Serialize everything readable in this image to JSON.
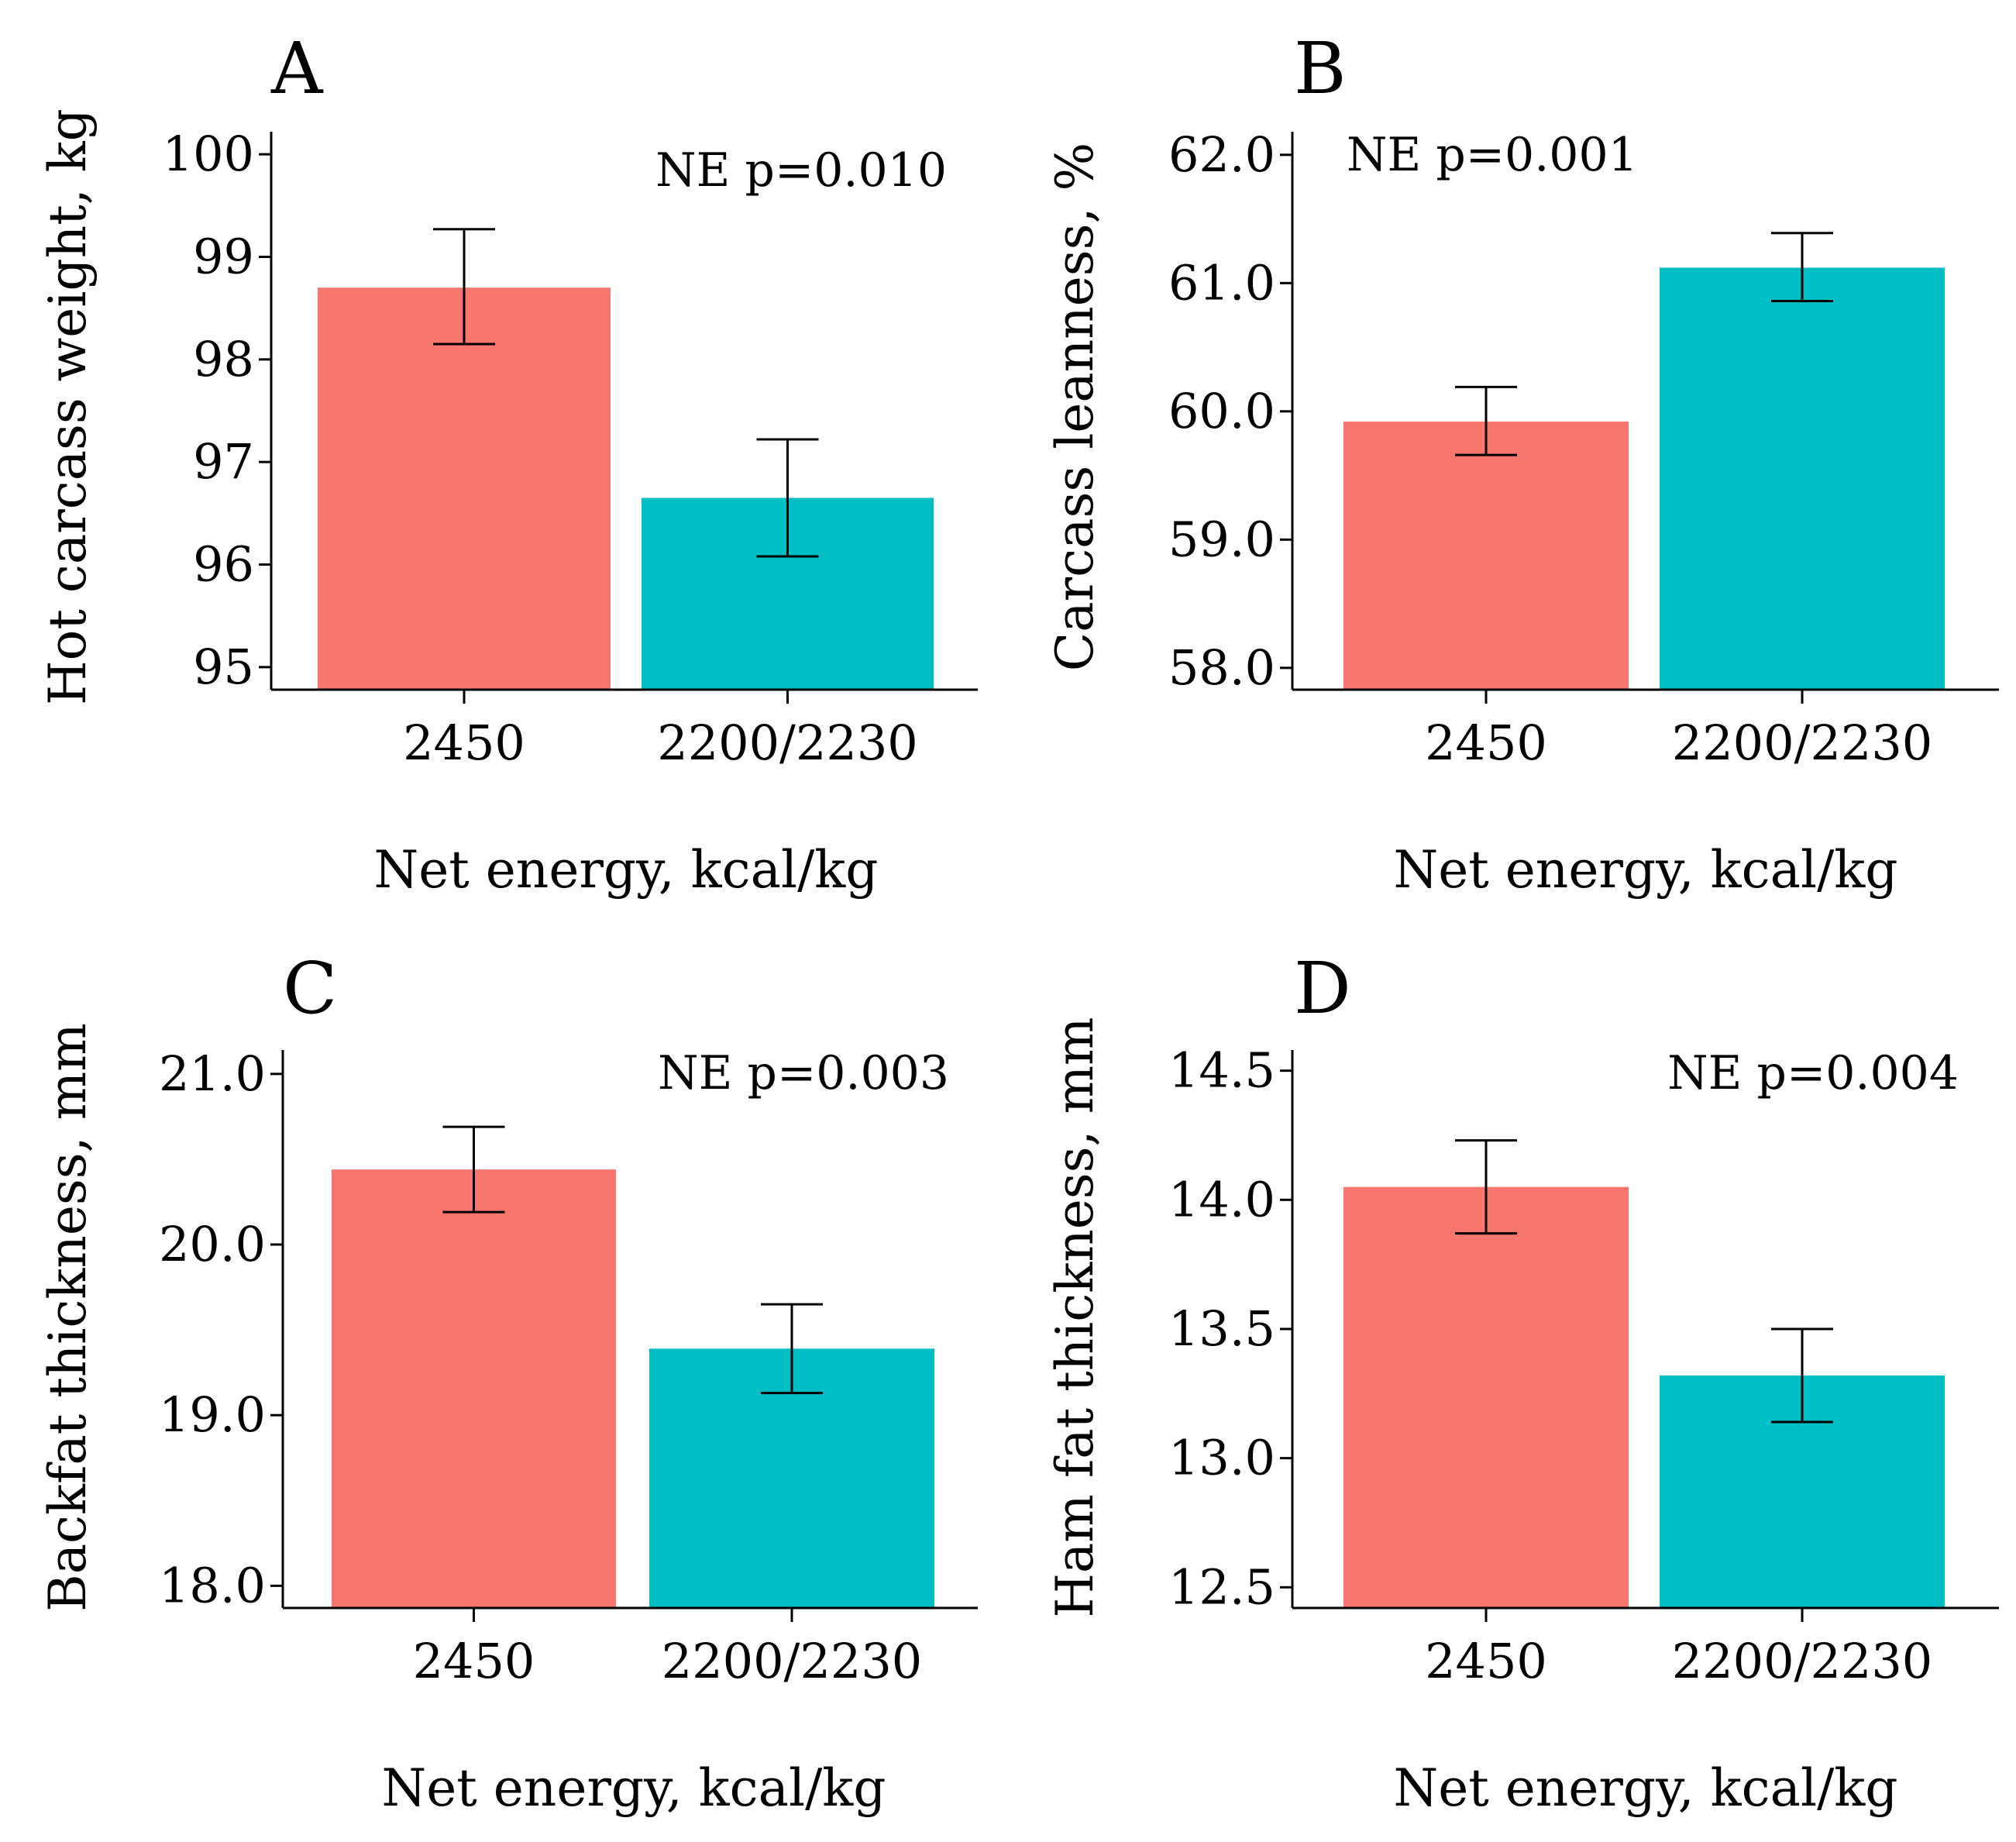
{
  "figure": {
    "colors": {
      "bar_2450": "#F8766D",
      "bar_2200": "#00BFC4",
      "axis": "#000000"
    }
  },
  "chart_data": [
    {
      "panel": "A",
      "type": "bar",
      "categories": [
        "2450",
        "2200/2230"
      ],
      "values": [
        98.7,
        96.65
      ],
      "error_upper": [
        99.27,
        97.22
      ],
      "error_lower": [
        98.15,
        96.08
      ],
      "xlabel": "Net energy, kcal/kg",
      "ylabel": "Hot carcass weight, kg",
      "ylim": [
        94.78,
        100.22
      ],
      "yticks": [
        95,
        96,
        97,
        98,
        99,
        100
      ],
      "ytick_labels": [
        "95",
        "96",
        "97",
        "98",
        "99",
        "100"
      ],
      "annotation": "NE p=0.010"
    },
    {
      "panel": "B",
      "type": "bar",
      "categories": [
        "2450",
        "2200/2230"
      ],
      "values": [
        59.92,
        61.12
      ],
      "error_upper": [
        60.19,
        61.39
      ],
      "error_lower": [
        59.66,
        60.86
      ],
      "xlabel": "Net energy, kcal/kg",
      "ylabel": "Carcass leanness, %",
      "ylim": [
        57.83,
        62.18
      ],
      "yticks": [
        58,
        59,
        60,
        61,
        62
      ],
      "ytick_labels": [
        "58.0",
        "59.0",
        "60.0",
        "61.0",
        "62.0"
      ],
      "annotation": "NE p=0.001"
    },
    {
      "panel": "C",
      "type": "bar",
      "categories": [
        "2450",
        "2200/2230"
      ],
      "values": [
        20.44,
        19.39
      ],
      "error_upper": [
        20.69,
        19.65
      ],
      "error_lower": [
        20.19,
        19.13
      ],
      "xlabel": "Net energy, kcal/kg",
      "ylabel": "Backfat thickness, mm",
      "ylim": [
        17.87,
        21.14
      ],
      "yticks": [
        18,
        19,
        20,
        21
      ],
      "ytick_labels": [
        "18.0",
        "19.0",
        "20.0",
        "21.0"
      ],
      "annotation": "NE p=0.003"
    },
    {
      "panel": "D",
      "type": "bar",
      "categories": [
        "2450",
        "2200/2230"
      ],
      "values": [
        14.05,
        13.32
      ],
      "error_upper": [
        14.23,
        13.5
      ],
      "error_lower": [
        13.87,
        13.14
      ],
      "xlabel": "Net energy, kcal/kg",
      "ylabel": "Ham fat thickness, mm",
      "ylim": [
        12.42,
        14.58
      ],
      "yticks": [
        12.5,
        13,
        13.5,
        14,
        14.5
      ],
      "ytick_labels": [
        "12.5",
        "13.0",
        "13.5",
        "14.0",
        "14.5"
      ],
      "annotation": "NE p=0.004"
    }
  ]
}
